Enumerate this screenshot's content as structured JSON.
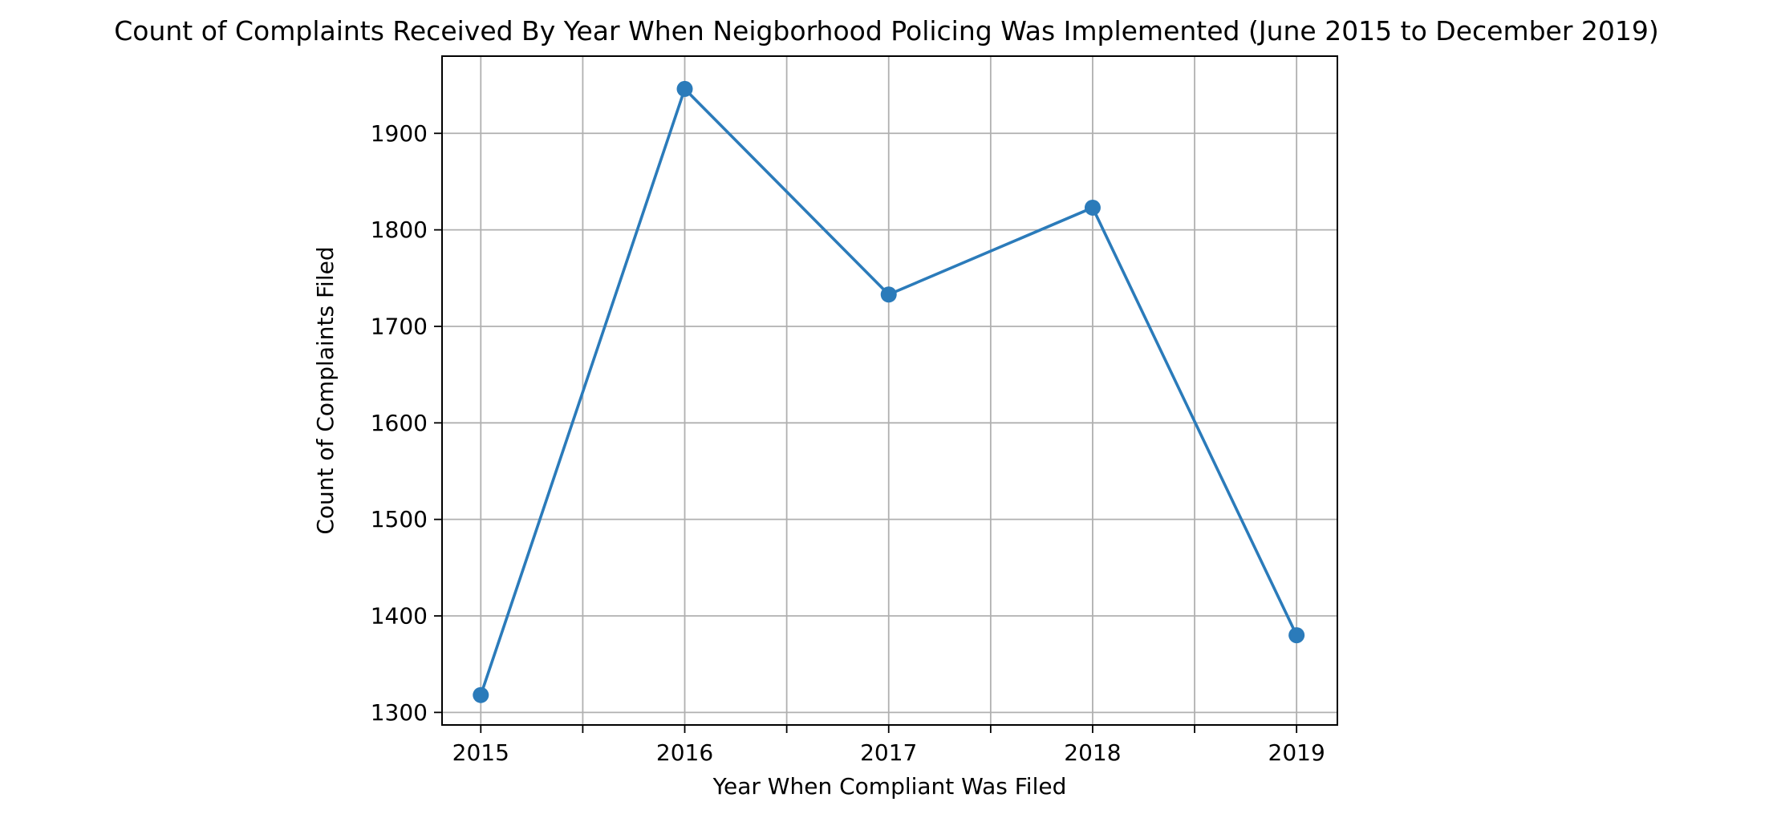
{
  "chart_data": {
    "type": "line",
    "title": "Count of Complaints Received By Year When Neigborhood Policing Was Implemented (June 2015 to December 2019)",
    "xlabel": "Year When Compliant Was Filed",
    "ylabel": "Count of Complaints Filed",
    "x": [
      2015,
      2016,
      2017,
      2018,
      2019
    ],
    "x_tick_labels": [
      "2015",
      "2016",
      "2017",
      "2018",
      "2019"
    ],
    "y_ticks": [
      1300,
      1400,
      1500,
      1600,
      1700,
      1800,
      1900
    ],
    "y_tick_labels": [
      "1300",
      "1400",
      "1500",
      "1600",
      "1700",
      "1800",
      "1900"
    ],
    "xlim": [
      2014.81,
      2019.2
    ],
    "ylim": [
      1287,
      1980
    ],
    "grid": true,
    "x_minor_ticks": [
      2015.5,
      2016.5,
      2017.5,
      2018.5
    ],
    "series": [
      {
        "values": [
          1318,
          1946,
          1733,
          1823,
          1380
        ],
        "color": "#2b7bba",
        "marker": "circle"
      }
    ]
  }
}
